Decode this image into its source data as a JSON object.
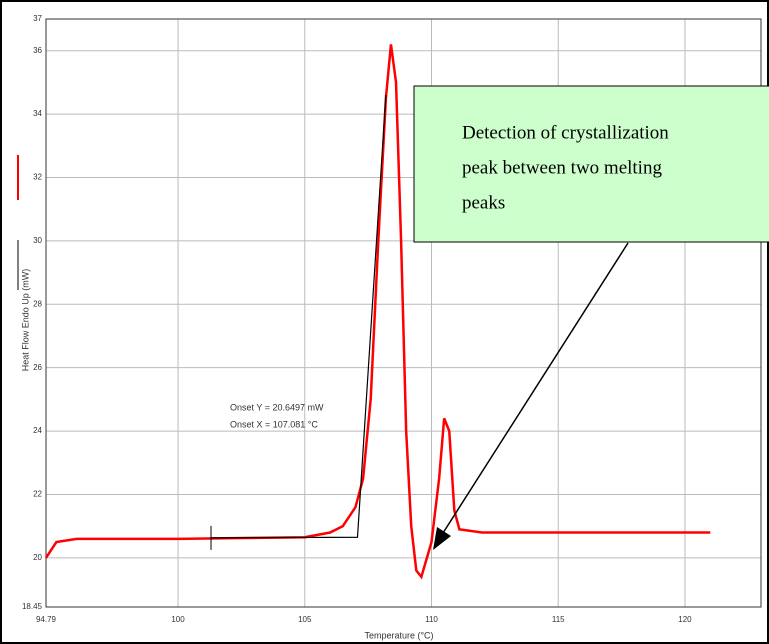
{
  "chart_data": {
    "type": "line",
    "x_label": "Temperature (°C)",
    "y_label": "Heat Flow Endo Up (mW)",
    "xlim": [
      94.79,
      123
    ],
    "xticks": [
      94.79,
      100,
      105,
      110,
      115,
      120
    ],
    "ylim": [
      18.45,
      37
    ],
    "yticks": [
      18.45,
      20,
      22,
      24,
      26,
      28,
      30,
      32,
      34,
      36,
      37
    ],
    "grid": true,
    "series": [
      {
        "color": "#ff0000",
        "x": [
          94.79,
          95.2,
          96,
          100,
          105,
          106,
          106.5,
          107,
          107.3,
          107.6,
          107.9,
          108.2,
          108.4,
          108.6,
          108.8,
          109,
          109.2,
          109.4,
          109.6,
          110,
          110.3,
          110.5,
          110.7,
          110.9,
          111.1,
          112,
          121
        ],
        "values": [
          20.0,
          20.5,
          20.6,
          20.6,
          20.65,
          20.8,
          21.0,
          21.6,
          22.5,
          25,
          30,
          34.5,
          36.2,
          35,
          30,
          24,
          21,
          19.6,
          19.4,
          20.5,
          22.5,
          24.4,
          24,
          21.5,
          20.9,
          20.8,
          20.8
        ]
      },
      {
        "color": "#000000",
        "x": [
          101.3,
          107.08,
          108.2
        ],
        "values": [
          20.63,
          20.65,
          34.6
        ]
      }
    ],
    "annotations": [
      "Onset Y = 20.6497 mW",
      "Onset X = 107.081 °C"
    ],
    "callout": [
      "Detection of crystallization",
      "peak between two melting",
      "peaks"
    ]
  }
}
